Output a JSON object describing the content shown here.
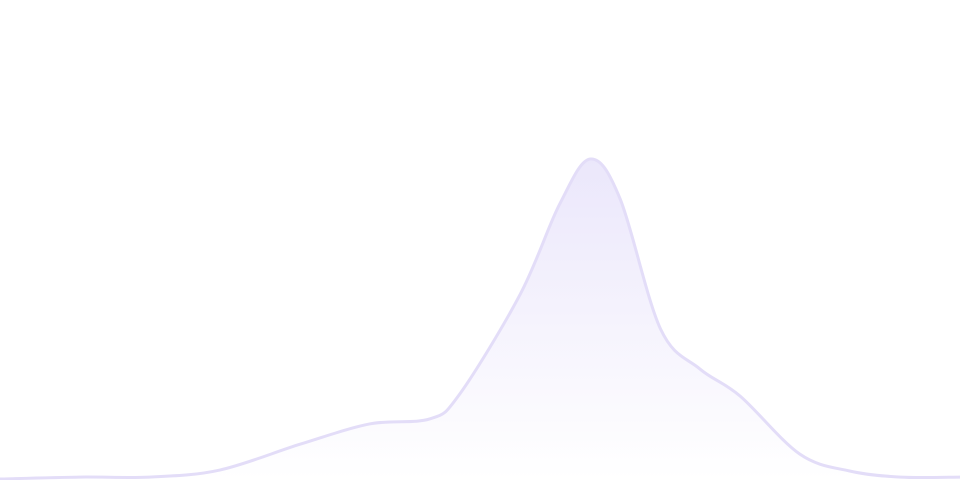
{
  "chart_data": {
    "type": "area",
    "title": "",
    "xlabel": "",
    "ylabel": "",
    "axes_visible": false,
    "grid": false,
    "legend": "none",
    "xlim": [
      0,
      100
    ],
    "ylim": [
      0,
      150
    ],
    "x": [
      0,
      8.3,
      15.6,
      22.9,
      31.3,
      38.5,
      44.8,
      47.9,
      54.2,
      58.3,
      61.5,
      64.6,
      68.8,
      72.9,
      77.1,
      83.3,
      88.5,
      93.8,
      100
    ],
    "values": [
      0,
      0.6,
      0.6,
      2.8,
      10.9,
      17.2,
      18.8,
      26.6,
      57.8,
      85.9,
      100,
      87.5,
      46.9,
      34.4,
      25.9,
      7.8,
      2.5,
      0.6,
      0.6
    ],
    "colors": {
      "line": "#e3ddf8",
      "fill_top": "#ebe7fb",
      "fill_bottom": "#ffffff"
    }
  }
}
